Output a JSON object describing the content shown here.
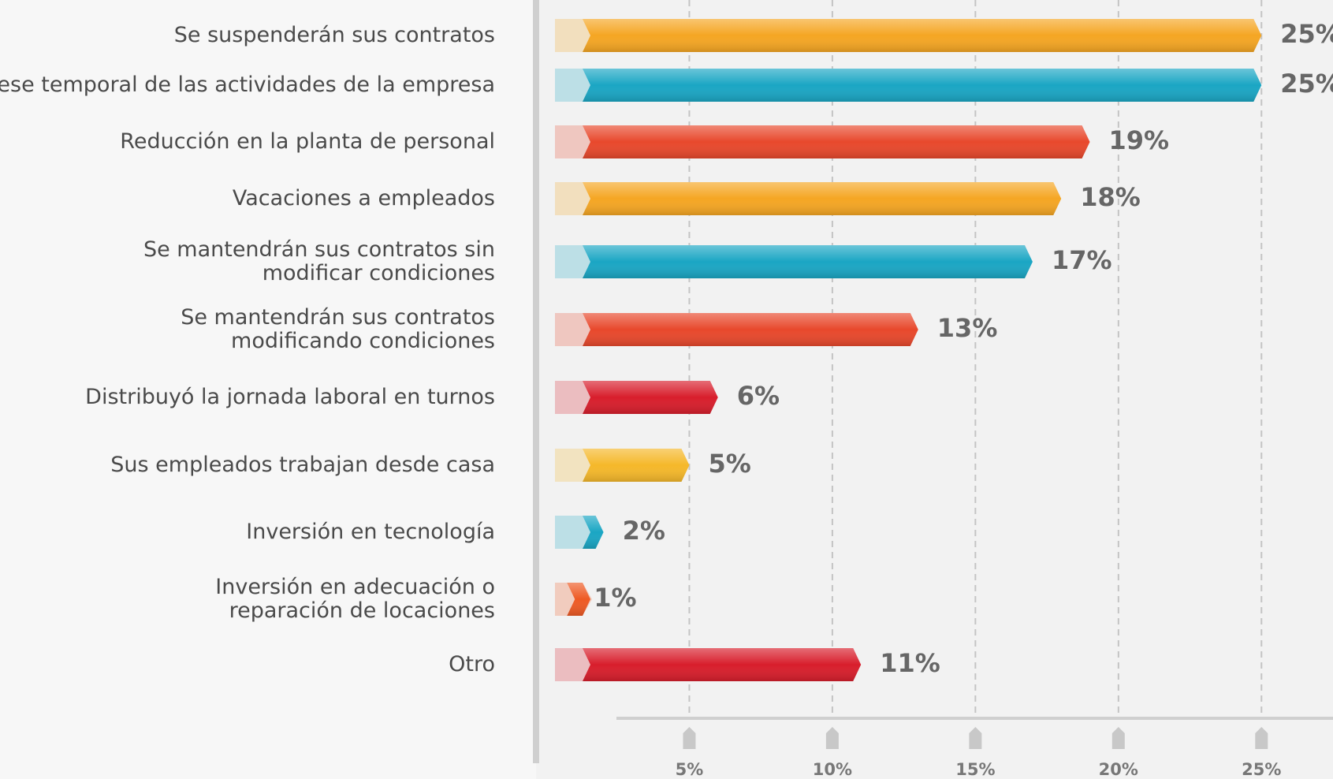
{
  "chart_data": {
    "type": "bar",
    "orientation": "horizontal",
    "categories": [
      "Se suspenderán sus contratos",
      "Cese temporal de las actividades de la empresa",
      "Reducción en la planta de personal",
      "Vacaciones a empleados",
      "Se mantendrán sus contratos sin\nmodificar condiciones",
      "Se mantendrán sus contratos\nmodificando condiciones",
      "Distribuyó la jornada laboral en turnos",
      "Sus empleados trabajan desde casa",
      "Inversión en tecnología",
      "Inversión en adecuación o\nreparación de locaciones",
      "Otro"
    ],
    "values": [
      25,
      25,
      19,
      18,
      17,
      13,
      6,
      5,
      2,
      1,
      11
    ],
    "value_labels": [
      "25%",
      "25%",
      "19%",
      "18%",
      "17%",
      "13%",
      "6%",
      "5%",
      "2%",
      "1%",
      "11%"
    ],
    "colors": [
      "#f5a623",
      "#1aa6c4",
      "#e8482c",
      "#f5a623",
      "#1aa6c4",
      "#e8482c",
      "#d81e2c",
      "#f5b82a",
      "#1aa6c4",
      "#ee5a24",
      "#d81e2c"
    ],
    "xlim": [
      0,
      27.5
    ],
    "xticks": [
      {
        "value": 5,
        "label": "5%"
      },
      {
        "value": 10,
        "label": "10%"
      },
      {
        "value": 15,
        "label": "15%"
      },
      {
        "value": 20,
        "label": "20%"
      },
      {
        "value": 25,
        "label": "25%"
      }
    ],
    "grid": true
  }
}
